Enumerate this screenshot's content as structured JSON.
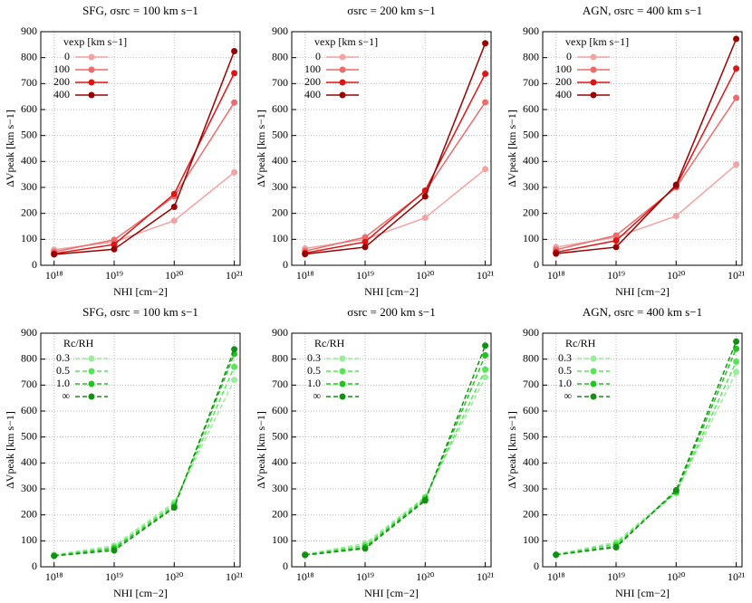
{
  "chart_data": [
    {
      "type": "line",
      "title": "SFG, σsrc = 100 km s−1",
      "x_label": "NHI [cm−2]",
      "y_label": "ΔVpeak [km s−1]",
      "legend_title": "vexp [km s−1]",
      "legend_position": "upper left",
      "log_x": true,
      "grid": true,
      "line_style": "solid",
      "x": [
        1e+18,
        1e+19,
        1e+20,
        1e+21
      ],
      "xlim": [
        6e+17,
        1.25e+21
      ],
      "xticks": [
        {
          "value": 1e+18,
          "label": "10¹⁸"
        },
        {
          "value": 1e+19,
          "label": "10¹⁹"
        },
        {
          "value": 1e+20,
          "label": "10²⁰"
        },
        {
          "value": 1e+21,
          "label": "10²¹"
        }
      ],
      "ylim": [
        0,
        900
      ],
      "yticks": [
        0,
        100,
        200,
        300,
        400,
        500,
        600,
        700,
        800,
        900
      ],
      "series": [
        {
          "name": "0",
          "color": "#f4a3a3",
          "values": [
            60,
            90,
            172,
            358
          ]
        },
        {
          "name": "100",
          "color": "#ee6b6b",
          "values": [
            52,
            98,
            265,
            627
          ]
        },
        {
          "name": "200",
          "color": "#dd1515",
          "values": [
            45,
            80,
            275,
            740
          ]
        },
        {
          "name": "400",
          "color": "#990000",
          "values": [
            42,
            62,
            225,
            825
          ]
        }
      ]
    },
    {
      "type": "line",
      "title": "σsrc = 200 km s−1",
      "x_label": "NHI [cm−2]",
      "y_label": "ΔVpeak [km s−1]",
      "legend_title": "vexp [km s−1]",
      "legend_position": "upper left",
      "log_x": true,
      "grid": true,
      "line_style": "solid",
      "x": [
        1e+18,
        1e+19,
        1e+20,
        1e+21
      ],
      "xlim": [
        6e+17,
        1.25e+21
      ],
      "xticks": [
        {
          "value": 1e+18,
          "label": "10¹⁸"
        },
        {
          "value": 1e+19,
          "label": "10¹⁹"
        },
        {
          "value": 1e+20,
          "label": "10²⁰"
        },
        {
          "value": 1e+21,
          "label": "10²¹"
        }
      ],
      "ylim": [
        0,
        900
      ],
      "yticks": [
        0,
        100,
        200,
        300,
        400,
        500,
        600,
        700,
        800,
        900
      ],
      "series": [
        {
          "name": "0",
          "color": "#f4a3a3",
          "values": [
            65,
            100,
            183,
            370
          ]
        },
        {
          "name": "100",
          "color": "#ee6b6b",
          "values": [
            55,
            108,
            285,
            628
          ]
        },
        {
          "name": "200",
          "color": "#dd1515",
          "values": [
            47,
            90,
            288,
            738
          ]
        },
        {
          "name": "400",
          "color": "#990000",
          "values": [
            43,
            70,
            265,
            855
          ]
        }
      ]
    },
    {
      "type": "line",
      "title": "AGN, σsrc = 400 km s−1",
      "x_label": "NHI [cm−2]",
      "y_label": "ΔVpeak [km s−1]",
      "legend_title": "vexp [km s−1]",
      "legend_position": "upper left",
      "log_x": true,
      "grid": true,
      "line_style": "solid",
      "x": [
        1e+18,
        1e+19,
        1e+20,
        1e+21
      ],
      "xlim": [
        6e+17,
        1.25e+21
      ],
      "xticks": [
        {
          "value": 1e+18,
          "label": "10¹⁸"
        },
        {
          "value": 1e+19,
          "label": "10¹⁹"
        },
        {
          "value": 1e+20,
          "label": "10²⁰"
        },
        {
          "value": 1e+21,
          "label": "10²¹"
        }
      ],
      "ylim": [
        0,
        900
      ],
      "yticks": [
        0,
        100,
        200,
        300,
        400,
        500,
        600,
        700,
        800,
        900
      ],
      "series": [
        {
          "name": "0",
          "color": "#f4a3a3",
          "values": [
            70,
            108,
            190,
            388
          ]
        },
        {
          "name": "100",
          "color": "#ee6b6b",
          "values": [
            60,
            115,
            300,
            645
          ]
        },
        {
          "name": "200",
          "color": "#dd1515",
          "values": [
            50,
            95,
            305,
            758
          ]
        },
        {
          "name": "400",
          "color": "#990000",
          "values": [
            45,
            70,
            310,
            872
          ]
        }
      ]
    },
    {
      "type": "line",
      "title": "SFG, σsrc = 100 km s−1",
      "x_label": "NHI [cm−2]",
      "y_label": "ΔVpeak [km s−1]",
      "legend_title": "Rc/RH",
      "legend_position": "upper left",
      "log_x": true,
      "grid": true,
      "line_style": "dashed",
      "x": [
        1e+18,
        1e+19,
        1e+20,
        1e+21
      ],
      "xlim": [
        6e+17,
        1.25e+21
      ],
      "xticks": [
        {
          "value": 1e+18,
          "label": "10¹⁸"
        },
        {
          "value": 1e+19,
          "label": "10¹⁹"
        },
        {
          "value": 1e+20,
          "label": "10²⁰"
        },
        {
          "value": 1e+21,
          "label": "10²¹"
        }
      ],
      "ylim": [
        0,
        900
      ],
      "yticks": [
        0,
        100,
        200,
        300,
        400,
        500,
        600,
        700,
        800,
        900
      ],
      "series": [
        {
          "name": "0.3",
          "color": "#99ee99",
          "values": [
            46,
            82,
            248,
            720
          ]
        },
        {
          "name": "0.5",
          "color": "#55e655",
          "values": [
            44,
            75,
            240,
            770
          ]
        },
        {
          "name": "1.0",
          "color": "#22c422",
          "values": [
            42,
            70,
            232,
            820
          ]
        },
        {
          "name": "∞",
          "color": "#119011",
          "values": [
            42,
            63,
            228,
            838
          ]
        }
      ]
    },
    {
      "type": "line",
      "title": "σsrc = 200 km s−1",
      "x_label": "NHI [cm−2]",
      "y_label": "ΔVpeak [km s−1]",
      "legend_title": "Rc/RH",
      "legend_position": "upper left",
      "log_x": true,
      "grid": true,
      "line_style": "dashed",
      "x": [
        1e+18,
        1e+19,
        1e+20,
        1e+21
      ],
      "xlim": [
        6e+17,
        1.25e+21
      ],
      "xticks": [
        {
          "value": 1e+18,
          "label": "10¹⁸"
        },
        {
          "value": 1e+19,
          "label": "10¹⁹"
        },
        {
          "value": 1e+20,
          "label": "10²⁰"
        },
        {
          "value": 1e+21,
          "label": "10²¹"
        }
      ],
      "ylim": [
        0,
        900
      ],
      "yticks": [
        0,
        100,
        200,
        300,
        400,
        500,
        600,
        700,
        800,
        900
      ],
      "series": [
        {
          "name": "0.3",
          "color": "#99ee99",
          "values": [
            48,
            90,
            270,
            730
          ]
        },
        {
          "name": "0.5",
          "color": "#55e655",
          "values": [
            47,
            82,
            265,
            760
          ]
        },
        {
          "name": "1.0",
          "color": "#22c422",
          "values": [
            46,
            75,
            260,
            815
          ]
        },
        {
          "name": "∞",
          "color": "#119011",
          "values": [
            45,
            70,
            255,
            852
          ]
        }
      ]
    },
    {
      "type": "line",
      "title": "AGN, σsrc = 400 km s−1",
      "x_label": "NHI [cm−2]",
      "y_label": "ΔVpeak [km s−1]",
      "legend_title": "Rc/RH",
      "legend_position": "upper left",
      "log_x": true,
      "grid": true,
      "line_style": "dashed",
      "x": [
        1e+18,
        1e+19,
        1e+20,
        1e+21
      ],
      "xlim": [
        6e+17,
        1.25e+21
      ],
      "xticks": [
        {
          "value": 1e+18,
          "label": "10¹⁸"
        },
        {
          "value": 1e+19,
          "label": "10¹⁹"
        },
        {
          "value": 1e+20,
          "label": "10²⁰"
        },
        {
          "value": 1e+21,
          "label": "10²¹"
        }
      ],
      "ylim": [
        0,
        900
      ],
      "yticks": [
        0,
        100,
        200,
        300,
        400,
        500,
        600,
        700,
        800,
        900
      ],
      "series": [
        {
          "name": "0.3",
          "color": "#99ee99",
          "values": [
            48,
            95,
            290,
            750
          ]
        },
        {
          "name": "0.5",
          "color": "#55e655",
          "values": [
            47,
            88,
            285,
            790
          ]
        },
        {
          "name": "1.0",
          "color": "#22c422",
          "values": [
            46,
            80,
            290,
            840
          ]
        },
        {
          "name": "∞",
          "color": "#119011",
          "values": [
            46,
            75,
            295,
            868
          ]
        }
      ]
    }
  ]
}
